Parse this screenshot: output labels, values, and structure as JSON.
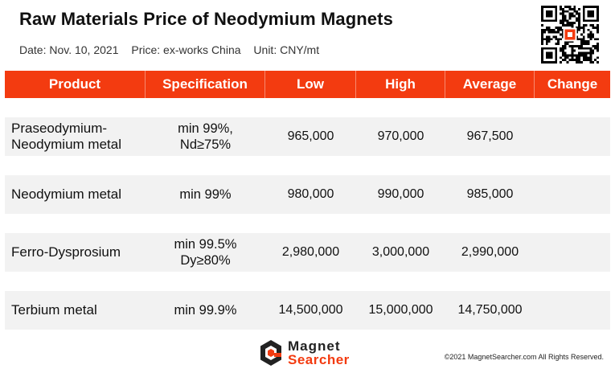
{
  "header": {
    "title": "Raw Materials Price of Neodymium Magnets",
    "date": "Date: Nov. 10, 2021",
    "price": "Price: ex-works China",
    "unit": "Unit: CNY/mt"
  },
  "table": {
    "columns": [
      "Product",
      "Specification",
      "Low",
      "High",
      "Average",
      "Change"
    ],
    "rows": [
      {
        "product": [
          "Praseodymium-",
          "Neodymium metal"
        ],
        "spec": [
          "min 99%,",
          "Nd≥75%"
        ],
        "low": "965,000",
        "high": "970,000",
        "average": "967,500",
        "change": ""
      },
      {
        "product": [
          "Neodymium metal"
        ],
        "spec": [
          "min 99%"
        ],
        "low": "980,000",
        "high": "990,000",
        "average": "985,000",
        "change": ""
      },
      {
        "product": [
          "Ferro-Dysprosium"
        ],
        "spec": [
          "min 99.5%",
          "Dy≥80%"
        ],
        "low": "2,980,000",
        "high": "3,000,000",
        "average": "2,990,000",
        "change": ""
      },
      {
        "product": [
          "Terbium metal"
        ],
        "spec": [
          "min 99.9%"
        ],
        "low": "14,500,000",
        "high": "15,000,000",
        "average": "14,750,000",
        "change": ""
      }
    ]
  },
  "footer": {
    "logo_line1": "Magnet",
    "logo_line2": "Searcher",
    "copyright": "©2021 MagnetSearcher.com All Rights Reserved."
  },
  "colors": {
    "accent": "#f33b10",
    "row_bg": "#f2f2f2"
  },
  "icons": {
    "qr": "qr-code-icon",
    "logo": "magnet-searcher-logo-icon"
  }
}
